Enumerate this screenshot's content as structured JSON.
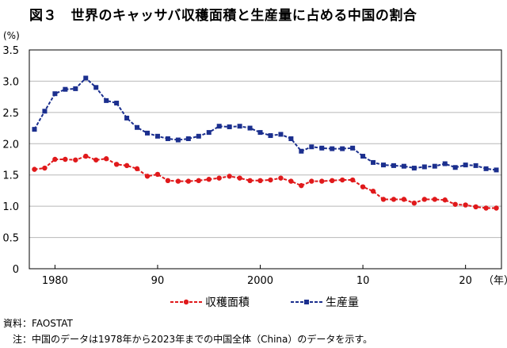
{
  "title": "図３　世界のキャッサバ収穫面積と生産量に占める中国の割合",
  "source": {
    "label": "資料：",
    "text": "FAOSTAT"
  },
  "note": {
    "label": "注：",
    "text": "中国のデータは1978年から2023年までの中国全体（China）のデータを示す。"
  },
  "chart_data": {
    "type": "line",
    "title": "図３　世界のキャッサバ収穫面積と生産量に占める中国の割合",
    "ylabel": "(%)",
    "xlabel": "（年）",
    "ylim": [
      0,
      3.5
    ],
    "yticks": [
      "0",
      "0.5",
      "1.0",
      "1.5",
      "2.0",
      "2.5",
      "3.0",
      "3.5"
    ],
    "xtick_labels": [
      {
        "year": 1980,
        "label": "1980"
      },
      {
        "year": 1990,
        "label": "90"
      },
      {
        "year": 2000,
        "label": "2000"
      },
      {
        "year": 2010,
        "label": "10"
      },
      {
        "year": 2020,
        "label": "20"
      }
    ],
    "grid": "horizontal",
    "legend_position": "bottom",
    "x": [
      1978,
      1979,
      1980,
      1981,
      1982,
      1983,
      1984,
      1985,
      1986,
      1987,
      1988,
      1989,
      1990,
      1991,
      1992,
      1993,
      1994,
      1995,
      1996,
      1997,
      1998,
      1999,
      2000,
      2001,
      2002,
      2003,
      2004,
      2005,
      2006,
      2007,
      2008,
      2009,
      2010,
      2011,
      2012,
      2013,
      2014,
      2015,
      2016,
      2017,
      2018,
      2019,
      2020,
      2021,
      2022,
      2023
    ],
    "series": [
      {
        "name": "収穫面積",
        "color": "#e0191b",
        "marker": "circle",
        "values": [
          1.59,
          1.61,
          1.75,
          1.75,
          1.74,
          1.8,
          1.74,
          1.76,
          1.67,
          1.65,
          1.6,
          1.48,
          1.51,
          1.41,
          1.4,
          1.4,
          1.41,
          1.43,
          1.45,
          1.48,
          1.45,
          1.41,
          1.41,
          1.42,
          1.45,
          1.4,
          1.33,
          1.4,
          1.4,
          1.41,
          1.42,
          1.42,
          1.31,
          1.24,
          1.11,
          1.11,
          1.11,
          1.05,
          1.11,
          1.11,
          1.1,
          1.03,
          1.02,
          0.99,
          0.97,
          0.97
        ]
      },
      {
        "name": "生産量",
        "color": "#1b2f8e",
        "marker": "square",
        "values": [
          2.23,
          2.52,
          2.8,
          2.87,
          2.88,
          3.05,
          2.9,
          2.69,
          2.65,
          2.41,
          2.26,
          2.17,
          2.12,
          2.08,
          2.06,
          2.08,
          2.12,
          2.18,
          2.28,
          2.27,
          2.28,
          2.25,
          2.18,
          2.13,
          2.15,
          2.08,
          1.88,
          1.95,
          1.93,
          1.92,
          1.92,
          1.93,
          1.8,
          1.7,
          1.66,
          1.65,
          1.64,
          1.61,
          1.63,
          1.64,
          1.68,
          1.62,
          1.66,
          1.65,
          1.6,
          1.58
        ]
      }
    ]
  }
}
